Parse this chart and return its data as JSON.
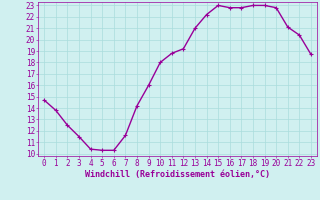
{
  "x": [
    0,
    1,
    2,
    3,
    4,
    5,
    6,
    7,
    8,
    9,
    10,
    11,
    12,
    13,
    14,
    15,
    16,
    17,
    18,
    19,
    20,
    21,
    22,
    23
  ],
  "y": [
    14.7,
    13.8,
    12.5,
    11.5,
    10.4,
    10.3,
    10.3,
    11.6,
    14.2,
    16.0,
    18.0,
    18.8,
    19.2,
    21.0,
    22.2,
    23.0,
    22.8,
    22.8,
    23.0,
    23.0,
    22.8,
    21.1,
    20.4,
    18.7
  ],
  "line_color": "#990099",
  "marker": "+",
  "bg_color": "#d0f0f0",
  "grid_color": "#aadddd",
  "xlabel": "Windchill (Refroidissement éolien,°C)",
  "xlabel_color": "#990099",
  "tick_color": "#990099",
  "ylim": [
    10,
    23
  ],
  "xlim": [
    0,
    23
  ],
  "yticks": [
    10,
    11,
    12,
    13,
    14,
    15,
    16,
    17,
    18,
    19,
    20,
    21,
    22,
    23
  ],
  "xticks": [
    0,
    1,
    2,
    3,
    4,
    5,
    6,
    7,
    8,
    9,
    10,
    11,
    12,
    13,
    14,
    15,
    16,
    17,
    18,
    19,
    20,
    21,
    22,
    23
  ],
  "font_size": 5.5,
  "line_width": 1.0,
  "marker_size": 3.0,
  "marker_ew": 0.8
}
